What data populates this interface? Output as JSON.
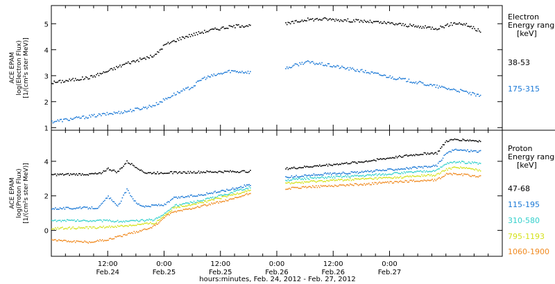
{
  "chart_data": [
    {
      "type": "scatter",
      "panel": "electron",
      "ylabel_lines": [
        "ACE EPAM",
        "log(Electron Flux)",
        "[1/(cm²s ster MeV)]"
      ],
      "legend_title": [
        "Electron",
        "Energy range",
        "[keV]"
      ],
      "ylim": [
        0.9,
        5.7
      ],
      "yticks": [
        1,
        2,
        3,
        4,
        5
      ],
      "xlim": [
        0,
        96
      ],
      "data_gap_hours": [
        [
          42.5,
          49.8
        ]
      ],
      "series": [
        {
          "name": "38-53",
          "color": "#000000",
          "points": [
            [
              0,
              2.75
            ],
            [
              4,
              2.85
            ],
            [
              8,
              2.95
            ],
            [
              12,
              3.2
            ],
            [
              16,
              3.5
            ],
            [
              20,
              3.7
            ],
            [
              22,
              3.8
            ],
            [
              24,
              4.2
            ],
            [
              28,
              4.5
            ],
            [
              32,
              4.7
            ],
            [
              36,
              4.85
            ],
            [
              40,
              4.95
            ],
            [
              42.5,
              4.95
            ],
            [
              49.8,
              5.0
            ],
            [
              54,
              5.18
            ],
            [
              58,
              5.2
            ],
            [
              66,
              5.12
            ],
            [
              74,
              5.0
            ],
            [
              78,
              4.9
            ],
            [
              82,
              4.85
            ],
            [
              86,
              5.05
            ],
            [
              88,
              5.0
            ],
            [
              91.5,
              4.7
            ]
          ]
        },
        {
          "name": "175-315",
          "color": "#1a78d6",
          "points": [
            [
              0,
              1.25
            ],
            [
              4,
              1.35
            ],
            [
              8,
              1.45
            ],
            [
              12,
              1.55
            ],
            [
              16,
              1.65
            ],
            [
              20,
              1.8
            ],
            [
              22,
              1.9
            ],
            [
              26,
              2.3
            ],
            [
              30,
              2.6
            ],
            [
              32,
              2.9
            ],
            [
              36,
              3.1
            ],
            [
              38,
              3.2
            ],
            [
              42.5,
              3.15
            ],
            [
              49.8,
              3.3
            ],
            [
              54,
              3.55
            ],
            [
              58,
              3.45
            ],
            [
              66,
              3.2
            ],
            [
              74,
              2.9
            ],
            [
              82,
              2.6
            ],
            [
              88,
              2.4
            ],
            [
              91.5,
              2.2
            ]
          ]
        }
      ]
    },
    {
      "type": "scatter",
      "panel": "proton",
      "ylabel_lines": [
        "ACE EPAM",
        "log(Proton Flux)",
        "[1/(cm²s ster MeV)]"
      ],
      "legend_title": [
        "Proton",
        "Energy range",
        "[keV]"
      ],
      "ylim": [
        -1.5,
        5.8
      ],
      "yticks": [
        0,
        2,
        4
      ],
      "xlim": [
        0,
        96
      ],
      "data_gap_hours": [
        [
          42.5,
          49.8
        ]
      ],
      "series": [
        {
          "name": "47-68",
          "color": "#000000",
          "points": [
            [
              0,
              3.25
            ],
            [
              10,
              3.3
            ],
            [
              12,
              3.6
            ],
            [
              14,
              3.4
            ],
            [
              16,
              4.0
            ],
            [
              18,
              3.7
            ],
            [
              20,
              3.35
            ],
            [
              30,
              3.4
            ],
            [
              42.5,
              3.45
            ],
            [
              49.8,
              3.6
            ],
            [
              58,
              3.8
            ],
            [
              66,
              4.0
            ],
            [
              74,
              4.3
            ],
            [
              80,
              4.5
            ],
            [
              82,
              4.5
            ],
            [
              84,
              5.2
            ],
            [
              86,
              5.3
            ],
            [
              91.5,
              5.2
            ]
          ]
        },
        {
          "name": "115-195",
          "color": "#1a78d6",
          "points": [
            [
              0,
              1.3
            ],
            [
              10,
              1.35
            ],
            [
              12,
              2.0
            ],
            [
              14,
              1.4
            ],
            [
              16,
              2.4
            ],
            [
              18,
              1.6
            ],
            [
              20,
              1.4
            ],
            [
              22,
              1.5
            ],
            [
              24,
              1.5
            ],
            [
              26,
              1.9
            ],
            [
              32,
              2.1
            ],
            [
              38,
              2.4
            ],
            [
              42.5,
              2.7
            ],
            [
              49.8,
              3.1
            ],
            [
              58,
              3.3
            ],
            [
              66,
              3.4
            ],
            [
              74,
              3.6
            ],
            [
              80,
              3.7
            ],
            [
              82,
              3.8
            ],
            [
              84,
              4.5
            ],
            [
              86,
              4.7
            ],
            [
              91.5,
              4.6
            ]
          ]
        },
        {
          "name": "310-580",
          "color": "#33d0cc",
          "points": [
            [
              0,
              0.6
            ],
            [
              10,
              0.6
            ],
            [
              16,
              0.55
            ],
            [
              22,
              0.65
            ],
            [
              24,
              1.0
            ],
            [
              26,
              1.45
            ],
            [
              32,
              1.75
            ],
            [
              38,
              2.2
            ],
            [
              42.5,
              2.55
            ],
            [
              49.8,
              2.95
            ],
            [
              58,
              3.1
            ],
            [
              66,
              3.2
            ],
            [
              74,
              3.35
            ],
            [
              82,
              3.5
            ],
            [
              84,
              3.9
            ],
            [
              86,
              4.0
            ],
            [
              91.5,
              3.9
            ]
          ]
        },
        {
          "name": "795-1193",
          "color": "#d4e21a",
          "points": [
            [
              0,
              0.15
            ],
            [
              10,
              0.2
            ],
            [
              16,
              0.3
            ],
            [
              22,
              0.45
            ],
            [
              24,
              0.9
            ],
            [
              26,
              1.35
            ],
            [
              32,
              1.65
            ],
            [
              38,
              2.05
            ],
            [
              42.5,
              2.4
            ],
            [
              49.8,
              2.75
            ],
            [
              58,
              2.9
            ],
            [
              66,
              3.0
            ],
            [
              74,
              3.1
            ],
            [
              82,
              3.25
            ],
            [
              84,
              3.55
            ],
            [
              86,
              3.7
            ],
            [
              91.5,
              3.5
            ]
          ]
        },
        {
          "name": "1060-1900",
          "color": "#f08a20",
          "points": [
            [
              0,
              -0.5
            ],
            [
              4,
              -0.6
            ],
            [
              8,
              -0.65
            ],
            [
              12,
              -0.5
            ],
            [
              16,
              -0.2
            ],
            [
              20,
              0.1
            ],
            [
              22,
              0.3
            ],
            [
              24,
              0.8
            ],
            [
              26,
              1.1
            ],
            [
              32,
              1.45
            ],
            [
              38,
              1.8
            ],
            [
              42.5,
              2.2
            ],
            [
              49.8,
              2.45
            ],
            [
              58,
              2.6
            ],
            [
              66,
              2.7
            ],
            [
              74,
              2.85
            ],
            [
              82,
              2.95
            ],
            [
              84,
              3.3
            ],
            [
              86,
              3.3
            ],
            [
              91.5,
              3.15
            ]
          ]
        }
      ]
    }
  ],
  "x_ticks": [
    {
      "hour": 12,
      "time": "12:00",
      "date": "Feb.24"
    },
    {
      "hour": 24,
      "time": "0:00",
      "date": "Feb.25"
    },
    {
      "hour": 36,
      "time": "12:00",
      "date": "Feb.25"
    },
    {
      "hour": 48,
      "time": "0:00",
      "date": "Feb.26"
    },
    {
      "hour": 60,
      "time": "12:00",
      "date": "Feb.26"
    },
    {
      "hour": 72,
      "time": "0:00",
      "date": "Feb.27"
    }
  ],
  "xlabel": "hours:minutes, Feb. 24, 2012 - Feb. 27, 2012"
}
